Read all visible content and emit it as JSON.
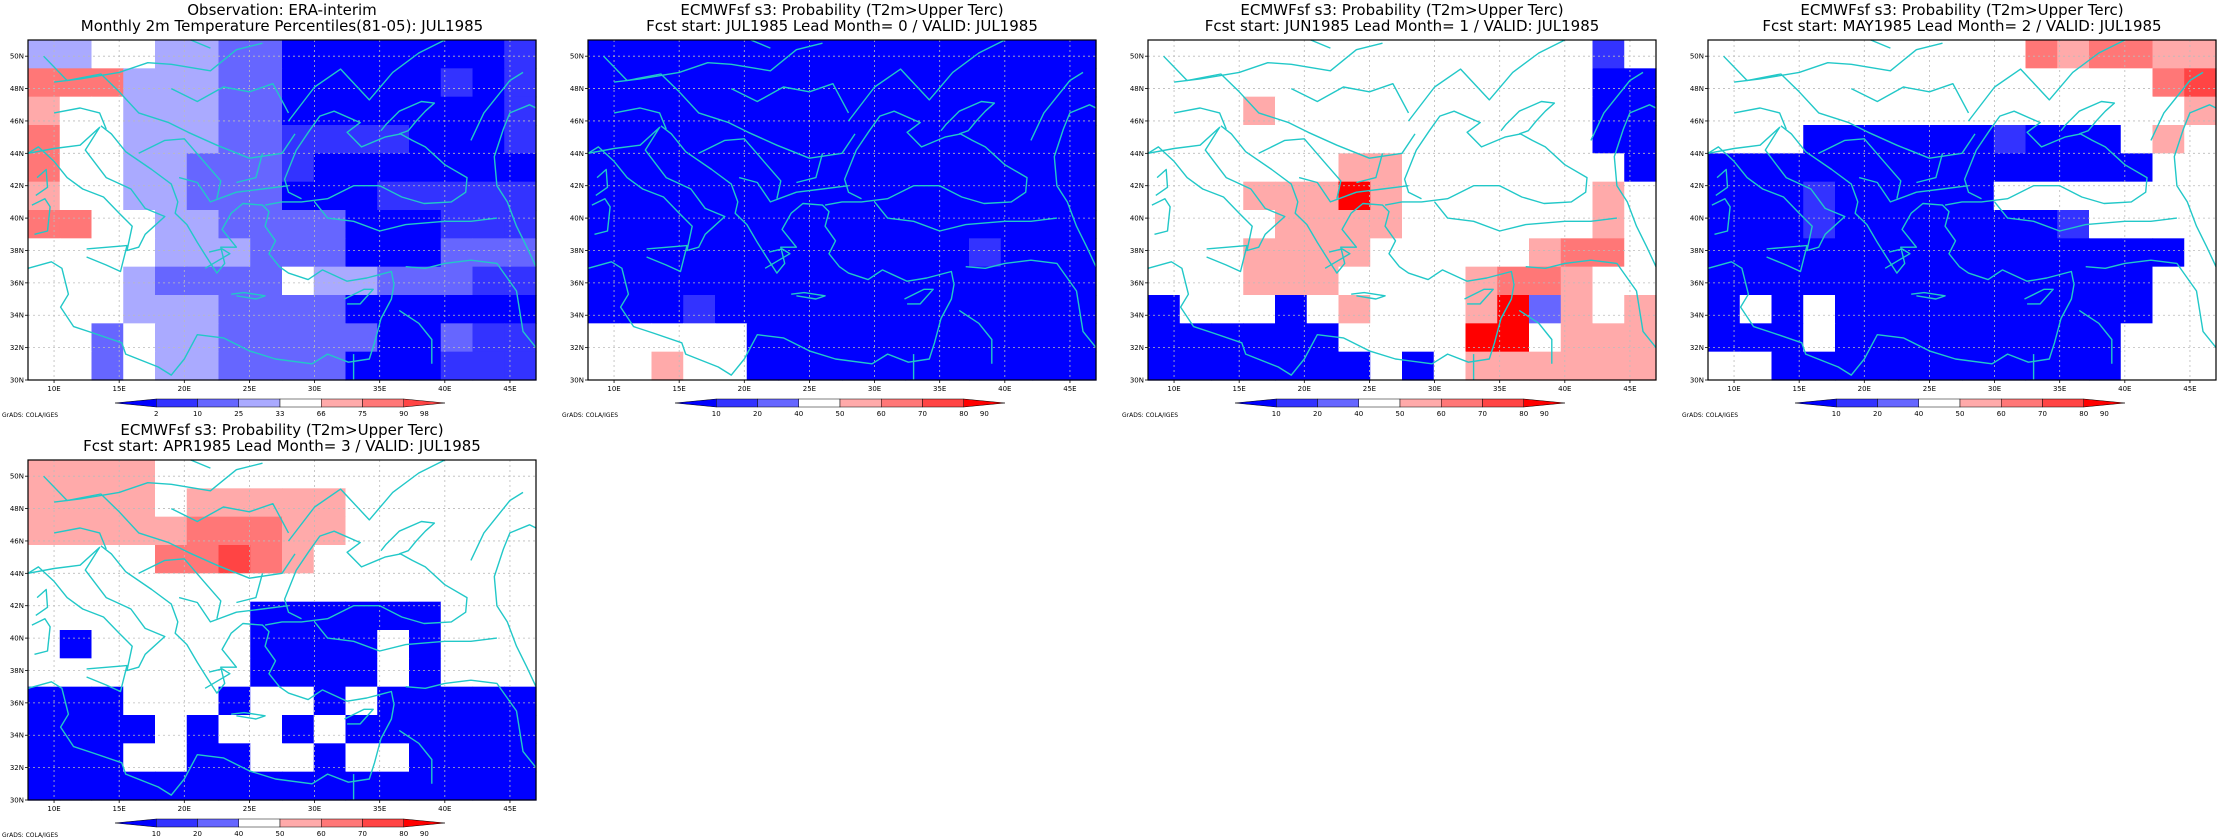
{
  "colors": {
    "coast": "#22c8c8",
    "grid": "#bbbbbb",
    "prob_levels": [
      "#0000ff",
      "#3333ff",
      "#6666ff",
      "#ffffff",
      "#ffaaaa",
      "#ff7777",
      "#ff4444",
      "#ff0000"
    ],
    "pct_levels": [
      "#0000ff",
      "#3333ff",
      "#6666ff",
      "#aaaaff",
      "#ffffff",
      "#ffaaaa",
      "#ff7777",
      "#ff4444"
    ]
  },
  "axes": {
    "lon_labels": [
      "10E",
      "15E",
      "20E",
      "25E",
      "30E",
      "35E",
      "40E",
      "45E"
    ],
    "lat_labels": [
      "50N",
      "48N",
      "46N",
      "44N",
      "42N",
      "40N",
      "38N",
      "36N",
      "34N",
      "32N",
      "30N"
    ]
  },
  "credit": "GrADS: COLA/IGES",
  "panels": [
    {
      "line1": "Observation: ERA-interim",
      "line2": "Monthly 2m Temperature Percentiles(81-05): JUL1985",
      "colorbar": [
        "2",
        "10",
        "25",
        "33",
        "66",
        "75",
        "90",
        "98"
      ],
      "palette": "pct_levels",
      "grid": [
        "3344332200000001",
        "6663332200000101",
        "5443332200000001",
        "6443332211110001",
        "6443322210000000",
        "5443322200011111",
        "6644332222000111",
        "4444333222000222",
        "4443222243322211",
        "4443332222000000",
        "4424332222200211",
        "4424332222000111"
      ]
    },
    {
      "line1": "ECMWFsf s3: Probability (T2m>Upper Terc)",
      "line2": "Fcst start: JUL1985  Lead Month= 0 / VALID: JUL1985",
      "colorbar": [
        "10",
        "20",
        "40",
        "50",
        "60",
        "70",
        "80",
        "90"
      ],
      "palette": "prob_levels",
      "grid": [
        "0000000000000000",
        "0000000000000000",
        "0000000000000000",
        "0000000000000000",
        "0000000000000000",
        "0000000000000000",
        "0000000000000000",
        "0000000000001000",
        "0000000000000000",
        "0001000000000000",
        "3333300000000000",
        "3343300000000000"
      ]
    },
    {
      "line1": "ECMWFsf s3: Probability (T2m>Upper Terc)",
      "line2": "Fcst start: JUN1985  Lead Month= 1 / VALID: JUL1985",
      "colorbar": [
        "10",
        "20",
        "40",
        "50",
        "60",
        "70",
        "80",
        "90"
      ],
      "palette": "prob_levels",
      "grid": [
        "3333333333333313",
        "3333333333333300",
        "3334333333333300",
        "3333333333333300",
        "3333334433333330",
        "3334447433333343",
        "3333444433333343",
        "3334444333334553",
        "3334443333455433",
        "0333034333472434",
        "0000003333773444",
        "0000000303444444"
      ]
    },
    {
      "line1": "ECMWFsf s3: Probability (T2m>Upper Terc)",
      "line2": "Fcst start: MAY1985  Lead Month= 2 / VALID: JUL1985",
      "colorbar": [
        "10",
        "20",
        "40",
        "50",
        "60",
        "70",
        "80",
        "90"
      ],
      "palette": "prob_levels",
      "grid": [
        "3333333333545544",
        "3333333333333356",
        "3333333333333334",
        "3330000001000343",
        "0000000000000033",
        "0001000003333333",
        "0001000000013333",
        "0000000000000003",
        "0000000000000033",
        "0303000000000033",
        "0003000000000333",
        "3300000000000333"
      ]
    },
    {
      "line1": "ECMWFsf s3: Probability (T2m>Upper Terc)",
      "line2": "Fcst start: APR1985  Lead Month= 3 / VALID: JUL1985",
      "colorbar": [
        "10",
        "20",
        "40",
        "50",
        "60",
        "70",
        "80",
        "90"
      ],
      "palette": "prob_levels",
      "grid": [
        "4444333333333333",
        "4444344444333333",
        "4444455544333333",
        "3333556543333333",
        "3333333333333333",
        "3333333000000333",
        "3033333000030333",
        "3333333000030333",
        "0003330330300000",
        "0000303303000000",
        "0003300330330000",
        "0000000000000000"
      ]
    }
  ]
}
